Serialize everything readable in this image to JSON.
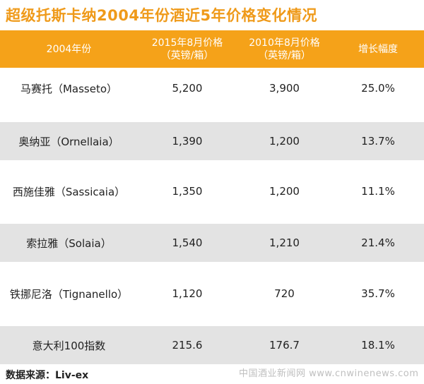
{
  "chart_data": {
    "type": "table",
    "title": "超级托斯卡纳2004年份酒近5年价格变化情况",
    "columns": [
      {
        "lines": [
          "2004年份"
        ]
      },
      {
        "lines": [
          "2015年8月价格",
          "（英镑/箱）"
        ]
      },
      {
        "lines": [
          "2010年8月价格",
          "（英镑/箱）"
        ]
      },
      {
        "lines": [
          "增长幅度"
        ]
      }
    ],
    "rows": [
      {
        "name": "马赛托（Masseto）",
        "p2015": "5,200",
        "p2010": "3,900",
        "growth": "25.0%"
      },
      {
        "name": "奥纳亚（Ornellaia）",
        "p2015": "1,390",
        "p2010": "1,200",
        "growth": "13.7%"
      },
      {
        "name": "西施佳雅（Sassicaia）",
        "p2015": "1,350",
        "p2010": "1,200",
        "growth": "11.1%"
      },
      {
        "name": "索拉雅（Solaia）",
        "p2015": "1,540",
        "p2010": "1,210",
        "growth": "21.4%"
      },
      {
        "name": "铁挪尼洛（Tignanello）",
        "p2015": "1,120",
        "p2010": "720",
        "growth": "35.7%"
      },
      {
        "name": "意大利100指数",
        "p2015": "215.6",
        "p2010": "176.7",
        "growth": "18.1%"
      }
    ],
    "source": "数据来源：Liv-ex",
    "watermark": "中国酒业新闻网 www.cnwinenews.com",
    "colors": {
      "accent": "#f5a219",
      "title": "#ef9a1a",
      "shade": "#e3e3e3"
    }
  }
}
